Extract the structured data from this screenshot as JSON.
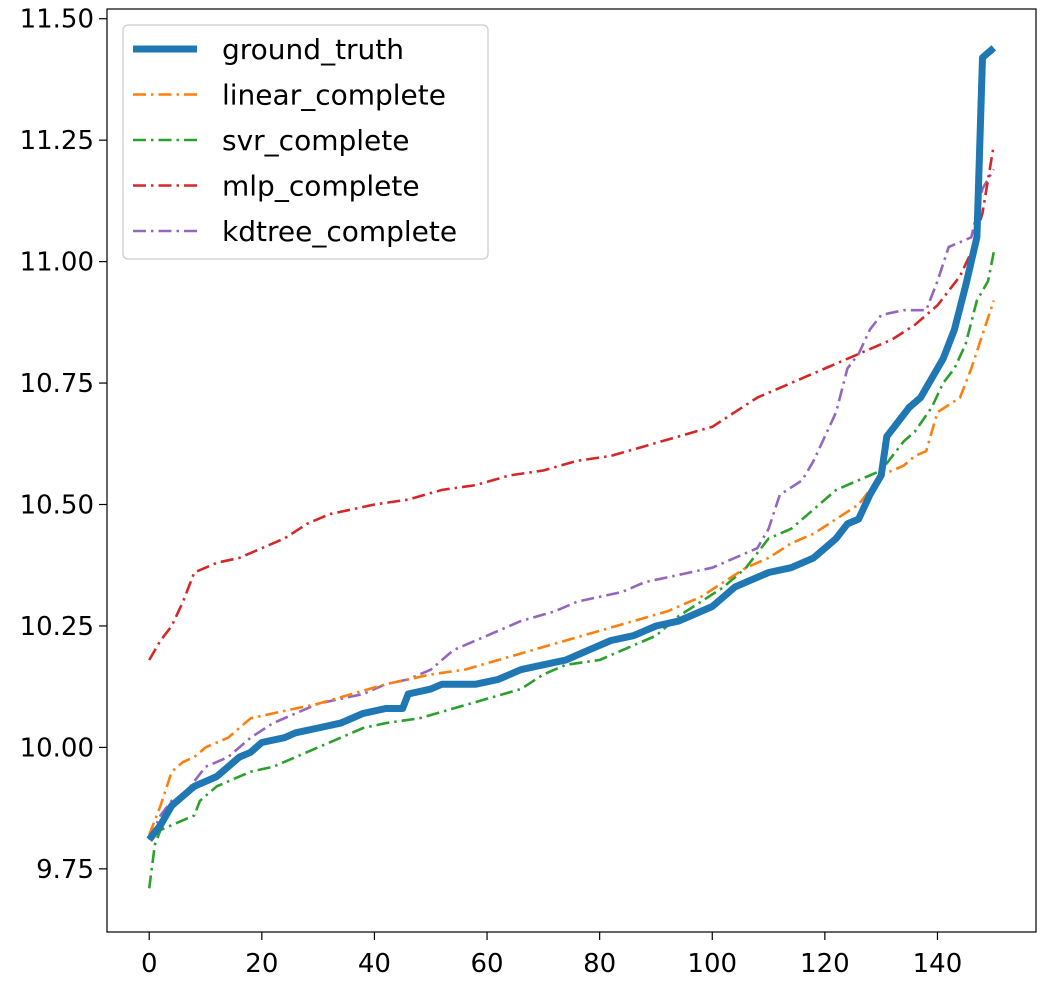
{
  "chart_data": {
    "type": "line",
    "title": "",
    "xlabel": "",
    "ylabel": "",
    "xlim": [
      -7.5,
      157.5
    ],
    "ylim": [
      9.62,
      11.52
    ],
    "xticks": [
      0,
      20,
      40,
      60,
      80,
      100,
      120,
      140
    ],
    "xtick_labels": [
      "0",
      "20",
      "40",
      "60",
      "80",
      "100",
      "120",
      "140"
    ],
    "yticks": [
      9.75,
      10.0,
      10.25,
      10.5,
      10.75,
      11.0,
      11.25,
      11.5
    ],
    "ytick_labels": [
      "9.75",
      "10.00",
      "10.25",
      "10.50",
      "10.75",
      "11.00",
      "11.25",
      "11.50"
    ],
    "grid": false,
    "legend_position": "top-left",
    "series": [
      {
        "name": "ground_truth",
        "color": "#1f77b4",
        "style": "solid",
        "points": [
          [
            0,
            9.81
          ],
          [
            2,
            9.84
          ],
          [
            4,
            9.88
          ],
          [
            6,
            9.9
          ],
          [
            8,
            9.92
          ],
          [
            10,
            9.93
          ],
          [
            12,
            9.94
          ],
          [
            14,
            9.96
          ],
          [
            16,
            9.98
          ],
          [
            18,
            9.99
          ],
          [
            20,
            10.01
          ],
          [
            24,
            10.02
          ],
          [
            26,
            10.03
          ],
          [
            30,
            10.04
          ],
          [
            34,
            10.05
          ],
          [
            38,
            10.07
          ],
          [
            42,
            10.08
          ],
          [
            45,
            10.08
          ],
          [
            46,
            10.11
          ],
          [
            50,
            10.12
          ],
          [
            52,
            10.13
          ],
          [
            58,
            10.13
          ],
          [
            62,
            10.14
          ],
          [
            66,
            10.16
          ],
          [
            70,
            10.17
          ],
          [
            74,
            10.18
          ],
          [
            78,
            10.2
          ],
          [
            82,
            10.22
          ],
          [
            86,
            10.23
          ],
          [
            90,
            10.25
          ],
          [
            94,
            10.26
          ],
          [
            98,
            10.28
          ],
          [
            100,
            10.29
          ],
          [
            104,
            10.33
          ],
          [
            106,
            10.34
          ],
          [
            110,
            10.36
          ],
          [
            114,
            10.37
          ],
          [
            118,
            10.39
          ],
          [
            120,
            10.41
          ],
          [
            122,
            10.43
          ],
          [
            124,
            10.46
          ],
          [
            126,
            10.47
          ],
          [
            128,
            10.52
          ],
          [
            130,
            10.56
          ],
          [
            131,
            10.64
          ],
          [
            133,
            10.67
          ],
          [
            135,
            10.7
          ],
          [
            137,
            10.72
          ],
          [
            139,
            10.76
          ],
          [
            141,
            10.8
          ],
          [
            143,
            10.86
          ],
          [
            145,
            10.95
          ],
          [
            147,
            11.05
          ],
          [
            148,
            11.42
          ],
          [
            150,
            11.44
          ]
        ]
      },
      {
        "name": "linear_complete",
        "color": "#ff7f0e",
        "style": "dashdot",
        "points": [
          [
            0,
            9.82
          ],
          [
            2,
            9.88
          ],
          [
            4,
            9.95
          ],
          [
            6,
            9.97
          ],
          [
            8,
            9.98
          ],
          [
            10,
            10.0
          ],
          [
            14,
            10.02
          ],
          [
            18,
            10.06
          ],
          [
            22,
            10.07
          ],
          [
            26,
            10.08
          ],
          [
            30,
            10.09
          ],
          [
            36,
            10.11
          ],
          [
            42,
            10.13
          ],
          [
            46,
            10.14
          ],
          [
            50,
            10.15
          ],
          [
            56,
            10.16
          ],
          [
            62,
            10.18
          ],
          [
            68,
            10.2
          ],
          [
            74,
            10.22
          ],
          [
            80,
            10.24
          ],
          [
            86,
            10.26
          ],
          [
            92,
            10.28
          ],
          [
            98,
            10.31
          ],
          [
            102,
            10.34
          ],
          [
            106,
            10.37
          ],
          [
            110,
            10.39
          ],
          [
            114,
            10.42
          ],
          [
            118,
            10.44
          ],
          [
            122,
            10.47
          ],
          [
            126,
            10.5
          ],
          [
            130,
            10.56
          ],
          [
            134,
            10.58
          ],
          [
            136,
            10.6
          ],
          [
            138,
            10.61
          ],
          [
            140,
            10.69
          ],
          [
            144,
            10.72
          ],
          [
            146,
            10.78
          ],
          [
            148,
            10.85
          ],
          [
            150,
            10.92
          ]
        ]
      },
      {
        "name": "svr_complete",
        "color": "#2ca02c",
        "style": "dashdot",
        "points": [
          [
            0,
            9.71
          ],
          [
            1,
            9.8
          ],
          [
            2,
            9.83
          ],
          [
            4,
            9.84
          ],
          [
            6,
            9.85
          ],
          [
            8,
            9.86
          ],
          [
            9,
            9.89
          ],
          [
            12,
            9.92
          ],
          [
            14,
            9.93
          ],
          [
            18,
            9.95
          ],
          [
            22,
            9.96
          ],
          [
            26,
            9.98
          ],
          [
            30,
            10.0
          ],
          [
            34,
            10.02
          ],
          [
            38,
            10.04
          ],
          [
            42,
            10.05
          ],
          [
            48,
            10.06
          ],
          [
            54,
            10.08
          ],
          [
            60,
            10.1
          ],
          [
            66,
            10.12
          ],
          [
            70,
            10.15
          ],
          [
            74,
            10.17
          ],
          [
            80,
            10.18
          ],
          [
            86,
            10.21
          ],
          [
            90,
            10.23
          ],
          [
            94,
            10.27
          ],
          [
            98,
            10.3
          ],
          [
            102,
            10.33
          ],
          [
            106,
            10.37
          ],
          [
            110,
            10.43
          ],
          [
            114,
            10.45
          ],
          [
            118,
            10.49
          ],
          [
            122,
            10.53
          ],
          [
            126,
            10.55
          ],
          [
            130,
            10.57
          ],
          [
            134,
            10.63
          ],
          [
            136,
            10.65
          ],
          [
            139,
            10.7
          ],
          [
            141,
            10.75
          ],
          [
            143,
            10.78
          ],
          [
            145,
            10.83
          ],
          [
            147,
            10.92
          ],
          [
            149,
            10.96
          ],
          [
            150,
            11.02
          ]
        ]
      },
      {
        "name": "mlp_complete",
        "color": "#d62728",
        "style": "dashdot",
        "points": [
          [
            0,
            10.18
          ],
          [
            2,
            10.22
          ],
          [
            4,
            10.25
          ],
          [
            6,
            10.3
          ],
          [
            8,
            10.36
          ],
          [
            12,
            10.38
          ],
          [
            16,
            10.39
          ],
          [
            20,
            10.41
          ],
          [
            24,
            10.43
          ],
          [
            28,
            10.46
          ],
          [
            32,
            10.48
          ],
          [
            36,
            10.49
          ],
          [
            40,
            10.5
          ],
          [
            46,
            10.51
          ],
          [
            52,
            10.53
          ],
          [
            58,
            10.54
          ],
          [
            64,
            10.56
          ],
          [
            70,
            10.57
          ],
          [
            76,
            10.59
          ],
          [
            82,
            10.6
          ],
          [
            88,
            10.62
          ],
          [
            94,
            10.64
          ],
          [
            100,
            10.66
          ],
          [
            104,
            10.69
          ],
          [
            108,
            10.72
          ],
          [
            112,
            10.74
          ],
          [
            116,
            10.76
          ],
          [
            120,
            10.78
          ],
          [
            124,
            10.8
          ],
          [
            128,
            10.82
          ],
          [
            132,
            10.84
          ],
          [
            136,
            10.87
          ],
          [
            140,
            10.91
          ],
          [
            144,
            10.97
          ],
          [
            146,
            11.02
          ],
          [
            148,
            11.1
          ],
          [
            150,
            11.24
          ]
        ]
      },
      {
        "name": "kdtree_complete",
        "color": "#9467bd",
        "style": "dashdot",
        "points": [
          [
            0,
            9.81
          ],
          [
            2,
            9.86
          ],
          [
            4,
            9.89
          ],
          [
            6,
            9.9
          ],
          [
            8,
            9.93
          ],
          [
            10,
            9.96
          ],
          [
            14,
            9.98
          ],
          [
            18,
            10.02
          ],
          [
            22,
            10.05
          ],
          [
            26,
            10.07
          ],
          [
            30,
            10.09
          ],
          [
            34,
            10.1
          ],
          [
            38,
            10.11
          ],
          [
            42,
            10.13
          ],
          [
            46,
            10.14
          ],
          [
            50,
            10.16
          ],
          [
            54,
            10.2
          ],
          [
            58,
            10.22
          ],
          [
            62,
            10.24
          ],
          [
            66,
            10.26
          ],
          [
            72,
            10.28
          ],
          [
            76,
            10.3
          ],
          [
            80,
            10.31
          ],
          [
            84,
            10.32
          ],
          [
            88,
            10.34
          ],
          [
            92,
            10.35
          ],
          [
            96,
            10.36
          ],
          [
            100,
            10.37
          ],
          [
            104,
            10.39
          ],
          [
            108,
            10.41
          ],
          [
            110,
            10.45
          ],
          [
            112,
            10.52
          ],
          [
            116,
            10.55
          ],
          [
            118,
            10.59
          ],
          [
            120,
            10.64
          ],
          [
            122,
            10.69
          ],
          [
            124,
            10.78
          ],
          [
            126,
            10.81
          ],
          [
            128,
            10.86
          ],
          [
            130,
            10.89
          ],
          [
            134,
            10.9
          ],
          [
            138,
            10.9
          ],
          [
            140,
            10.96
          ],
          [
            142,
            11.03
          ],
          [
            146,
            11.05
          ],
          [
            148,
            11.15
          ],
          [
            150,
            11.19
          ]
        ]
      }
    ]
  }
}
